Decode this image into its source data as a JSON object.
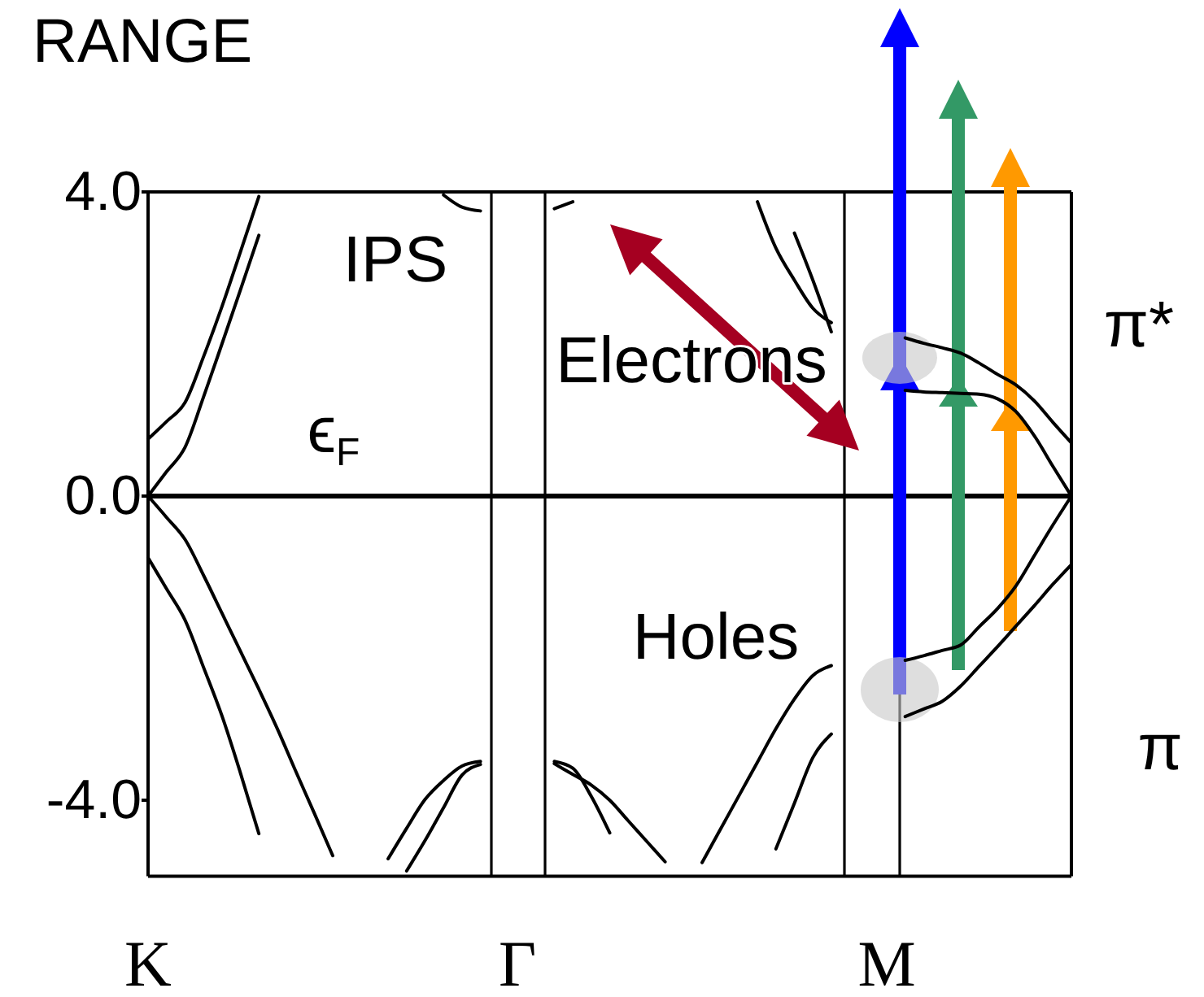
{
  "chart_data": {
    "type": "line",
    "title": "RANGE",
    "categories": [
      "K",
      null,
      null,
      null,
      null,
      null,
      null,
      null,
      null,
      null,
      null,
      null,
      null,
      null,
      null,
      null,
      null,
      null,
      null,
      null,
      "Γ",
      null,
      null,
      null,
      null,
      null,
      null,
      null,
      null,
      null,
      null,
      null,
      null,
      null,
      null,
      null,
      null,
      null,
      null,
      null,
      "M",
      null,
      null,
      null,
      null,
      null,
      null,
      null,
      null,
      null,
      null
    ],
    "ylim": [
      -5,
      4
    ],
    "yticks": [
      {
        "value": 4,
        "label": "4.0"
      },
      {
        "value": 0,
        "label": "0.0"
      },
      {
        "value": -4,
        "label": "-4.0"
      }
    ],
    "series": [
      {
        "color": "#000000",
        "values": [
          0,
          0.32,
          0.64,
          1.3,
          2.0,
          2.71,
          3.43,
          null,
          null,
          null,
          null,
          null,
          null,
          null,
          null,
          null,
          null,
          null,
          null,
          null,
          null,
          null,
          null,
          null,
          null,
          null,
          null,
          null,
          null,
          null,
          null,
          null,
          null,
          null,
          null,
          null,
          null,
          null,
          null,
          null,
          null,
          null,
          null,
          null,
          null,
          null,
          null,
          null,
          null,
          null,
          null
        ]
      },
      {
        "color": "#000000",
        "values": [
          0.75,
          0.98,
          1.23,
          1.83,
          2.49,
          3.21,
          3.94,
          null,
          null,
          null,
          null,
          null,
          null,
          null,
          null,
          null,
          null,
          null,
          null,
          null,
          null,
          null,
          null,
          null,
          null,
          null,
          null,
          null,
          null,
          null,
          null,
          null,
          null,
          null,
          null,
          null,
          null,
          null,
          null,
          null,
          null,
          null,
          null,
          null,
          null,
          null,
          null,
          null,
          null,
          null,
          null
        ]
      },
      {
        "color": "#000000",
        "values": [
          null,
          null,
          null,
          null,
          null,
          null,
          null,
          null,
          null,
          null,
          null,
          null,
          null,
          null,
          null,
          null,
          3.96,
          3.8,
          3.75,
          null,
          null,
          null,
          null,
          null,
          null,
          null,
          null,
          null,
          null,
          null,
          null,
          null,
          null,
          null,
          null,
          null,
          null,
          null,
          null,
          null,
          null,
          null,
          null,
          null,
          null,
          null,
          null,
          null,
          null,
          null,
          null
        ]
      },
      {
        "color": "#000000",
        "values": [
          0,
          -0.28,
          -0.57,
          -1.04,
          -1.54,
          -2.04,
          -2.54,
          -3.06,
          -3.62,
          -4.17,
          -4.73,
          null,
          null,
          null,
          null,
          null,
          null,
          null,
          null,
          null,
          null,
          null,
          null,
          null,
          null,
          null,
          null,
          null,
          null,
          null,
          null,
          null,
          null,
          null,
          null,
          null,
          null,
          null,
          null,
          null,
          null,
          null,
          null,
          null,
          null,
          null,
          null,
          null,
          null,
          null,
          null
        ]
      },
      {
        "color": "#000000",
        "values": [
          -0.81,
          -1.22,
          -1.63,
          -2.25,
          -2.89,
          -3.64,
          -4.44,
          null,
          null,
          null,
          null,
          null,
          null,
          null,
          null,
          null,
          null,
          null,
          null,
          null,
          null,
          null,
          null,
          null,
          null,
          null,
          null,
          null,
          null,
          null,
          null,
          null,
          null,
          null,
          null,
          null,
          null,
          null,
          null,
          null,
          null,
          null,
          null,
          null,
          null,
          null,
          null,
          null,
          null,
          null,
          null
        ]
      },
      {
        "color": "#000000",
        "values": [
          null,
          null,
          null,
          null,
          null,
          null,
          null,
          null,
          null,
          null,
          null,
          null,
          null,
          -4.77,
          -4.37,
          -3.99,
          -3.74,
          -3.55,
          -3.49,
          null,
          null,
          null,
          null,
          null,
          null,
          null,
          null,
          null,
          null,
          null,
          null,
          null,
          null,
          null,
          null,
          null,
          null,
          null,
          null,
          null,
          null,
          null,
          null,
          null,
          null,
          null,
          null,
          null,
          null,
          null,
          null
        ]
      },
      {
        "color": "#000000",
        "values": [
          null,
          null,
          null,
          null,
          null,
          null,
          null,
          null,
          null,
          null,
          null,
          null,
          null,
          null,
          -4.93,
          -4.53,
          -4.1,
          -3.67,
          -3.53,
          null,
          null,
          null,
          null,
          null,
          null,
          null,
          null,
          null,
          null,
          null,
          null,
          null,
          null,
          null,
          null,
          null,
          null,
          null,
          null,
          null,
          null,
          null,
          null,
          null,
          null,
          null,
          null,
          null,
          null,
          null,
          null
        ]
      },
      {
        "color": "#000000",
        "values": [
          null,
          null,
          null,
          null,
          null,
          null,
          null,
          null,
          null,
          null,
          null,
          null,
          null,
          null,
          null,
          null,
          null,
          null,
          null,
          null,
          null,
          null,
          3.78,
          3.87,
          null,
          null,
          null,
          null,
          null,
          null,
          null,
          null,
          null,
          null,
          null,
          null,
          null,
          null,
          null,
          null,
          null,
          null,
          null,
          null,
          null,
          null,
          null,
          null,
          null,
          null,
          null
        ]
      },
      {
        "color": "#000000",
        "values": [
          null,
          null,
          null,
          null,
          null,
          null,
          null,
          null,
          null,
          null,
          null,
          null,
          null,
          null,
          null,
          null,
          null,
          null,
          null,
          null,
          null,
          null,
          null,
          null,
          null,
          null,
          null,
          null,
          null,
          null,
          null,
          null,
          null,
          3.87,
          3.26,
          2.84,
          2.47,
          2.28,
          null,
          null,
          null,
          null,
          null,
          null,
          null,
          null,
          null,
          null,
          null,
          null,
          null
        ]
      },
      {
        "color": "#000000",
        "values": [
          null,
          null,
          null,
          null,
          null,
          null,
          null,
          null,
          null,
          null,
          null,
          null,
          null,
          null,
          null,
          null,
          null,
          null,
          null,
          null,
          null,
          null,
          null,
          null,
          null,
          null,
          null,
          null,
          null,
          null,
          null,
          null,
          null,
          null,
          null,
          3.46,
          2.84,
          2.16,
          null,
          null,
          null,
          null,
          null,
          null,
          null,
          null,
          null,
          null,
          null,
          null,
          null
        ]
      },
      {
        "color": "#000000",
        "values": [
          null,
          null,
          null,
          null,
          null,
          null,
          null,
          null,
          null,
          null,
          null,
          null,
          null,
          null,
          null,
          null,
          null,
          null,
          null,
          null,
          null,
          null,
          -3.52,
          -3.66,
          -3.8,
          -4.0,
          -4.27,
          -4.54,
          -4.81,
          null,
          null,
          null,
          null,
          null,
          null,
          null,
          null,
          null,
          null,
          null,
          null,
          null,
          null,
          null,
          null,
          null,
          null,
          null,
          null,
          null,
          null
        ]
      },
      {
        "color": "#000000",
        "values": [
          null,
          null,
          null,
          null,
          null,
          null,
          null,
          null,
          null,
          null,
          null,
          null,
          null,
          null,
          null,
          null,
          null,
          null,
          null,
          null,
          null,
          null,
          -3.49,
          -3.58,
          -3.95,
          -4.43,
          null,
          null,
          null,
          null,
          null,
          null,
          null,
          null,
          null,
          null,
          null,
          null,
          null,
          null,
          null,
          null,
          null,
          null,
          null,
          null,
          null,
          null,
          null,
          null,
          null
        ]
      },
      {
        "color": "#000000",
        "values": [
          null,
          null,
          null,
          null,
          null,
          null,
          null,
          null,
          null,
          null,
          null,
          null,
          null,
          null,
          null,
          null,
          null,
          null,
          null,
          null,
          null,
          null,
          null,
          null,
          null,
          null,
          null,
          null,
          null,
          null,
          -4.82,
          -4.38,
          -3.94,
          -3.5,
          -3.06,
          -2.67,
          -2.36,
          -2.23,
          null,
          null,
          null,
          null,
          null,
          null,
          null,
          null,
          null,
          null,
          null,
          null,
          null
        ]
      },
      {
        "color": "#000000",
        "values": [
          null,
          null,
          null,
          null,
          null,
          null,
          null,
          null,
          null,
          null,
          null,
          null,
          null,
          null,
          null,
          null,
          null,
          null,
          null,
          null,
          null,
          null,
          null,
          null,
          null,
          null,
          null,
          null,
          null,
          null,
          null,
          null,
          null,
          null,
          -4.64,
          -4.04,
          -3.44,
          -3.13,
          null,
          null,
          null,
          null,
          null,
          null,
          null,
          null,
          null,
          null,
          null,
          null,
          null
        ]
      },
      {
        "color": "#000000",
        "values": [
          null,
          null,
          null,
          null,
          null,
          null,
          null,
          null,
          null,
          null,
          null,
          null,
          null,
          null,
          null,
          null,
          null,
          null,
          null,
          null,
          null,
          null,
          null,
          null,
          null,
          null,
          null,
          null,
          null,
          null,
          null,
          null,
          null,
          null,
          null,
          null,
          null,
          null,
          null,
          null,
          null,
          2.08,
          2.01,
          1.95,
          1.88,
          1.75,
          1.6,
          1.46,
          1.25,
          0.97,
          0.7
        ]
      },
      {
        "color": "#000000",
        "values": [
          null,
          null,
          null,
          null,
          null,
          null,
          null,
          null,
          null,
          null,
          null,
          null,
          null,
          null,
          null,
          null,
          null,
          null,
          null,
          null,
          null,
          null,
          null,
          null,
          null,
          null,
          null,
          null,
          null,
          null,
          null,
          null,
          null,
          null,
          null,
          null,
          null,
          null,
          null,
          null,
          null,
          1.39,
          1.37,
          1.36,
          1.35,
          1.34,
          1.28,
          1.11,
          0.79,
          0.39,
          0.0
        ]
      },
      {
        "color": "#000000",
        "values": [
          null,
          null,
          null,
          null,
          null,
          null,
          null,
          null,
          null,
          null,
          null,
          null,
          null,
          null,
          null,
          null,
          null,
          null,
          null,
          null,
          null,
          null,
          null,
          null,
          null,
          null,
          null,
          null,
          null,
          null,
          null,
          null,
          null,
          null,
          null,
          null,
          null,
          null,
          null,
          null,
          null,
          -2.16,
          -2.1,
          -2.03,
          -1.96,
          -1.72,
          -1.48,
          -1.18,
          -0.78,
          -0.38,
          0.0
        ]
      },
      {
        "color": "#000000",
        "values": [
          null,
          null,
          null,
          null,
          null,
          null,
          null,
          null,
          null,
          null,
          null,
          null,
          null,
          null,
          null,
          null,
          null,
          null,
          null,
          null,
          null,
          null,
          null,
          null,
          null,
          null,
          null,
          null,
          null,
          null,
          null,
          null,
          null,
          null,
          null,
          null,
          null,
          null,
          null,
          null,
          null,
          -2.9,
          -2.8,
          -2.7,
          -2.5,
          -2.24,
          -1.98,
          -1.71,
          -1.44,
          -1.16,
          -0.9
        ]
      }
    ],
    "ref_lines": [
      {
        "axis": "y",
        "value": 0
      }
    ],
    "annotations": [
      "IPS",
      "ϵ$_{F}$",
      "Electrons",
      "Holes",
      "π*",
      "π"
    ]
  }
}
